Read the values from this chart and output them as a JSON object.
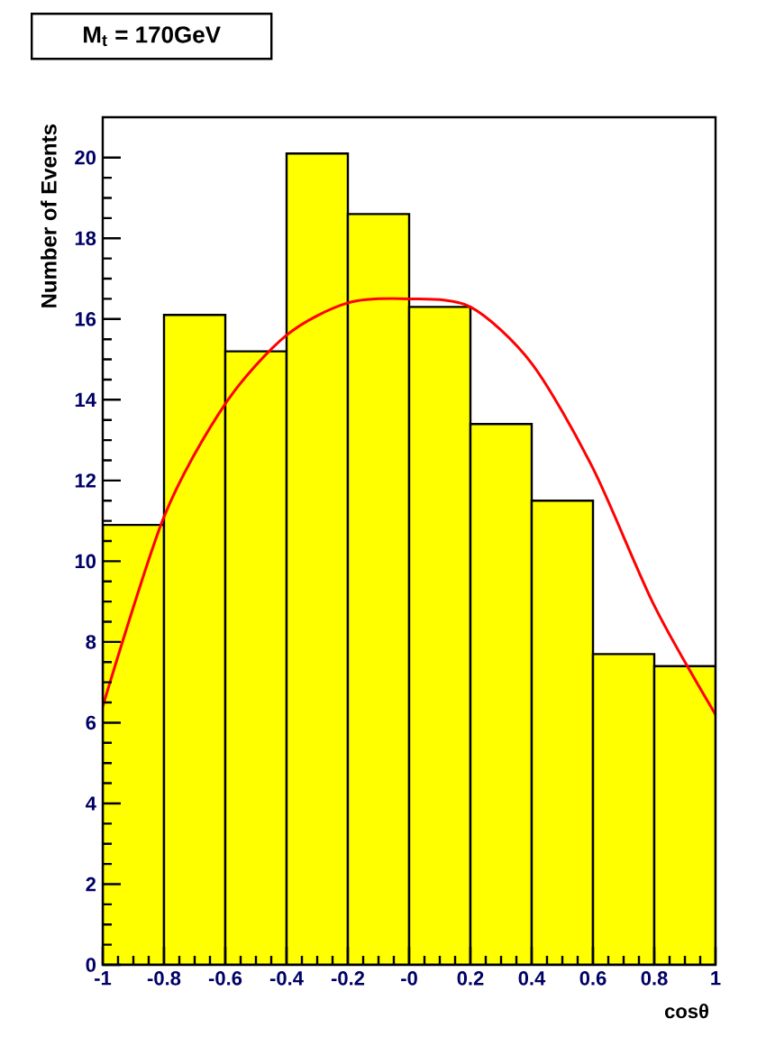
{
  "chart_data": {
    "type": "histogram",
    "title": "M$_{t}$ = 170GeV",
    "xlabel": "cosθ",
    "ylabel": "Number of Events",
    "xlim": [
      -1,
      1
    ],
    "ylim": [
      0,
      21
    ],
    "xticks": [
      -1,
      -0.8,
      -0.6,
      -0.4,
      -0.2,
      {
        "value": 0,
        "label": "-0"
      },
      0.2,
      0.4,
      0.6,
      0.8,
      1
    ],
    "yticks": [
      0,
      2,
      4,
      6,
      8,
      10,
      12,
      14,
      16,
      18,
      20
    ],
    "series": [
      {
        "type": "histogram",
        "color": "#ffff00",
        "bins": [
          -1,
          -0.8,
          -0.6,
          -0.4,
          -0.2,
          0,
          0.2,
          0.4,
          0.6,
          0.8,
          1
        ],
        "values": [
          10.9,
          16.1,
          15.2,
          20.1,
          18.6,
          16.3,
          13.4,
          11.5,
          7.7,
          7.4
        ]
      },
      {
        "type": "line",
        "color": "#ff0000",
        "x": [
          -1,
          -0.8,
          -0.6,
          -0.4,
          -0.2,
          0,
          0.2,
          0.4,
          0.6,
          0.8,
          1
        ],
        "values": [
          6.4,
          11.1,
          13.9,
          15.6,
          16.4,
          16.5,
          16.3,
          14.9,
          12.3,
          8.9,
          6.2
        ]
      }
    ]
  }
}
